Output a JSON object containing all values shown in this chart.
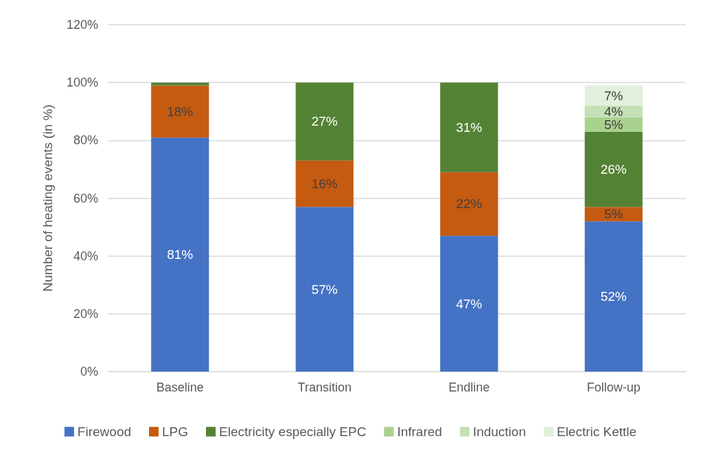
{
  "chart_data": {
    "type": "bar",
    "stacked": true,
    "ylabel": "Number of heating events (in %)",
    "categories": [
      "Baseline",
      "Transition",
      "Endline",
      "Follow-up"
    ],
    "series": [
      {
        "name": "Firewood",
        "color": "#4472c4",
        "values": [
          81,
          57,
          47,
          52
        ],
        "value_labels": [
          "81%",
          "57%",
          "47%",
          "52%"
        ]
      },
      {
        "name": "LPG",
        "color": "#c55a11",
        "values": [
          18,
          16,
          22,
          5
        ],
        "value_labels": [
          "18%",
          "16%",
          "22%",
          "5%"
        ]
      },
      {
        "name": "Electricity especially EPC",
        "color": "#548235",
        "values": [
          1,
          27,
          31,
          26
        ],
        "value_labels": [
          null,
          "27%",
          "31%",
          "26%"
        ]
      },
      {
        "name": "Infrared",
        "color": "#a9d18e",
        "values": [
          null,
          null,
          null,
          5
        ],
        "value_labels": [
          null,
          null,
          null,
          "5%"
        ]
      },
      {
        "name": "Induction",
        "color": "#c5e0b4",
        "values": [
          null,
          null,
          null,
          4
        ],
        "value_labels": [
          null,
          null,
          null,
          "4%"
        ]
      },
      {
        "name": "Electric Kettle",
        "color": "#e2efda",
        "values": [
          null,
          null,
          null,
          7
        ],
        "value_labels": [
          null,
          null,
          null,
          "7%"
        ]
      }
    ],
    "ylim": [
      0,
      120
    ],
    "yticks": [
      {
        "value": 0,
        "label": "0%"
      },
      {
        "value": 20,
        "label": "20%"
      },
      {
        "value": 40,
        "label": "40%"
      },
      {
        "value": 60,
        "label": "60%"
      },
      {
        "value": 80,
        "label": "80%"
      },
      {
        "value": 100,
        "label": "100%"
      },
      {
        "value": 120,
        "label": "120%"
      }
    ],
    "grid": "y",
    "legend": "bottom"
  }
}
